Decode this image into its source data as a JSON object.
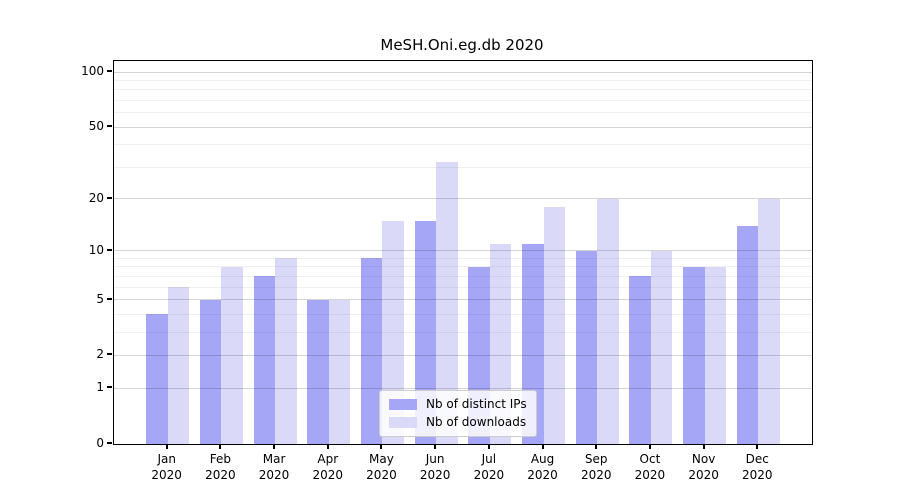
{
  "chart_data": {
    "type": "bar",
    "title": "MeSH.Oni.eg.db 2020",
    "categories": [
      "Jan",
      "Feb",
      "Mar",
      "Apr",
      "May",
      "Jun",
      "Jul",
      "Aug",
      "Sep",
      "Oct",
      "Nov",
      "Dec"
    ],
    "year": "2020",
    "series": [
      {
        "name": "Nb of distinct IPs",
        "color": "#a6a6f6",
        "values": [
          4,
          5,
          7,
          5,
          9,
          15,
          8,
          11,
          10,
          7,
          8,
          14
        ]
      },
      {
        "name": "Nb of downloads",
        "color": "#dadaf8",
        "values": [
          6,
          8,
          9,
          5,
          15,
          32,
          11,
          18,
          20,
          10,
          8,
          20
        ]
      }
    ],
    "xlabel": "",
    "ylabel": "",
    "yscale": "log1p",
    "ylim": [
      0,
      115
    ],
    "yticks": [
      0,
      1,
      2,
      5,
      10,
      20,
      50,
      100
    ],
    "yticks_minor": [
      3,
      4,
      6,
      7,
      8,
      9,
      30,
      40,
      60,
      70,
      80,
      90
    ],
    "grid": true,
    "legend_position": "lower center inside plot"
  },
  "colors": {
    "major_grid": "rgba(0,0,0,0.17)",
    "minor_grid": "rgba(0,0,0,0.06)",
    "axis": "#000000",
    "background": "#ffffff"
  }
}
